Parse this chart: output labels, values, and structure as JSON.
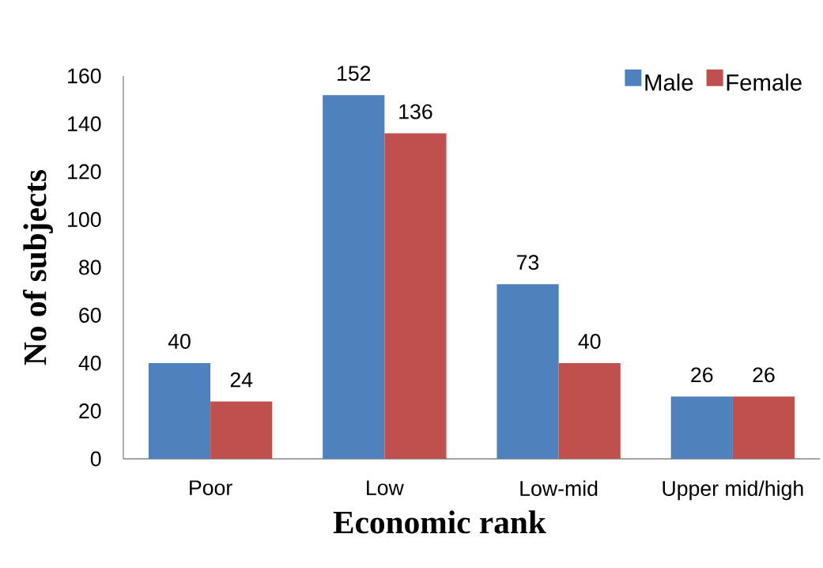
{
  "chart_data": {
    "type": "bar",
    "xlabel": "Economic rank",
    "ylabel": "No of subjects",
    "categories": [
      "Poor",
      "Low",
      "Low-mid",
      "Upper mid/high"
    ],
    "series": [
      {
        "name": "Male",
        "color": "#4f81bd",
        "values": [
          40,
          152,
          73,
          26
        ]
      },
      {
        "name": "Female",
        "color": "#c0504d",
        "values": [
          24,
          136,
          40,
          26
        ]
      }
    ],
    "ylim": [
      0,
      160
    ],
    "yticks": [
      0,
      20,
      40,
      60,
      80,
      100,
      120,
      140,
      160
    ],
    "data_labels": true,
    "legend": "top right",
    "grid": false
  }
}
